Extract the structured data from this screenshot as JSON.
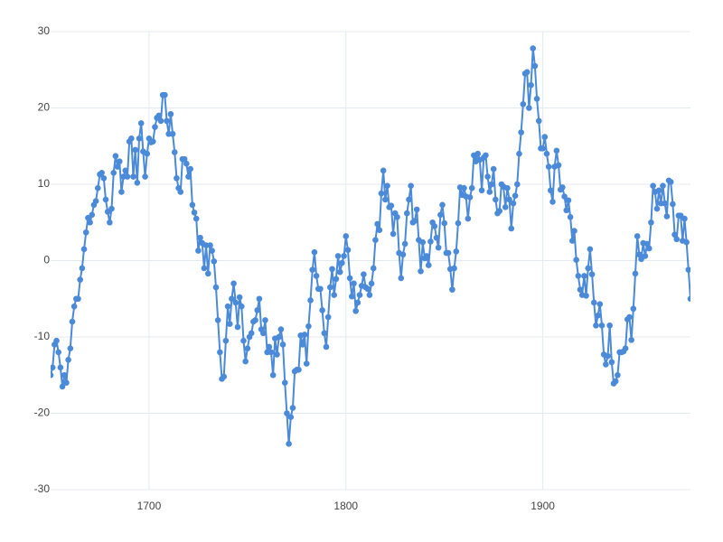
{
  "chart_data": {
    "type": "line",
    "xlim": [
      1650,
      1975
    ],
    "ylim": [
      -30,
      30
    ],
    "xticks": [
      1700,
      1800,
      1900
    ],
    "yticks": [
      -30,
      -20,
      -10,
      0,
      10,
      20,
      30
    ],
    "grid": true,
    "x": [
      1650,
      1651,
      1652,
      1653,
      1654,
      1655,
      1656,
      1657,
      1658,
      1659,
      1660,
      1661,
      1662,
      1663,
      1664,
      1665,
      1666,
      1667,
      1668,
      1669,
      1670,
      1671,
      1672,
      1673,
      1674,
      1675,
      1676,
      1677,
      1678,
      1679,
      1680,
      1681,
      1682,
      1683,
      1684,
      1685,
      1686,
      1687,
      1688,
      1689,
      1690,
      1691,
      1692,
      1693,
      1694,
      1695,
      1696,
      1697,
      1698,
      1699,
      1700,
      1701,
      1702,
      1703,
      1704,
      1705,
      1706,
      1707,
      1708,
      1709,
      1710,
      1711,
      1712,
      1713,
      1714,
      1715,
      1716,
      1717,
      1718,
      1719,
      1720,
      1721,
      1722,
      1723,
      1724,
      1725,
      1726,
      1727,
      1728,
      1729,
      1730,
      1731,
      1732,
      1733,
      1734,
      1735,
      1736,
      1737,
      1738,
      1739,
      1740,
      1741,
      1742,
      1743,
      1744,
      1745,
      1746,
      1747,
      1748,
      1749,
      1750,
      1751,
      1752,
      1753,
      1754,
      1755,
      1756,
      1757,
      1758,
      1759,
      1760,
      1761,
      1762,
      1763,
      1764,
      1765,
      1766,
      1767,
      1768,
      1769,
      1770,
      1771,
      1772,
      1773,
      1774,
      1775,
      1776,
      1777,
      1778,
      1779,
      1780,
      1781,
      1782,
      1783,
      1784,
      1785,
      1786,
      1787,
      1788,
      1789,
      1790,
      1791,
      1792,
      1793,
      1794,
      1795,
      1796,
      1797,
      1798,
      1799,
      1800,
      1801,
      1802,
      1803,
      1804,
      1805,
      1806,
      1807,
      1808,
      1809,
      1810,
      1811,
      1812,
      1813,
      1814,
      1815,
      1816,
      1817,
      1818,
      1819,
      1820,
      1821,
      1822,
      1823,
      1824,
      1825,
      1826,
      1827,
      1828,
      1829,
      1830,
      1831,
      1832,
      1833,
      1834,
      1835,
      1836,
      1837,
      1838,
      1839,
      1840,
      1841,
      1842,
      1843,
      1844,
      1845,
      1846,
      1847,
      1848,
      1849,
      1850,
      1851,
      1852,
      1853,
      1854,
      1855,
      1856,
      1857,
      1858,
      1859,
      1860,
      1861,
      1862,
      1863,
      1864,
      1865,
      1866,
      1867,
      1868,
      1869,
      1870,
      1871,
      1872,
      1873,
      1874,
      1875,
      1876,
      1877,
      1878,
      1879,
      1880,
      1881,
      1882,
      1883,
      1884,
      1885,
      1886,
      1887,
      1888,
      1889,
      1890,
      1891,
      1892,
      1893,
      1894,
      1895,
      1896,
      1897,
      1898,
      1899,
      1900,
      1901,
      1902,
      1903,
      1904,
      1905,
      1906,
      1907,
      1908,
      1909,
      1910,
      1911,
      1912,
      1913,
      1914,
      1915,
      1916,
      1917,
      1918,
      1919,
      1920,
      1921,
      1922,
      1923,
      1924,
      1925,
      1926,
      1927,
      1928,
      1929,
      1930,
      1931,
      1932,
      1933,
      1934,
      1935,
      1936,
      1937,
      1938,
      1939,
      1940,
      1941,
      1942,
      1943,
      1944,
      1945,
      1946,
      1947,
      1948,
      1949,
      1950,
      1951,
      1952,
      1953,
      1954,
      1955,
      1956,
      1957,
      1958,
      1959,
      1960,
      1961,
      1962,
      1963,
      1964,
      1965,
      1966,
      1967,
      1968,
      1969,
      1970,
      1971,
      1972,
      1973,
      1974,
      1975
    ],
    "series": [
      {
        "color": "#4a8ad8",
        "values": [
          -15,
          -14,
          -11,
          -10.5,
          -12,
          -14,
          -16.5,
          -15,
          -16,
          -13,
          -11.5,
          -8,
          -6,
          -5,
          -5,
          -2.5,
          -1,
          1.5,
          3.7,
          5.6,
          5,
          6,
          7.3,
          7.8,
          9.5,
          11.3,
          11.5,
          10.8,
          8,
          6.4,
          5,
          6.8,
          11.5,
          13.7,
          12.3,
          13,
          9,
          11,
          11.8,
          11,
          15.6,
          16,
          11,
          14.5,
          10.2,
          16,
          18,
          14.3,
          11,
          14,
          16,
          15.5,
          15.6,
          17.5,
          18.7,
          19,
          18.3,
          21.7,
          21.7,
          18.3,
          16.6,
          19.2,
          16.6,
          14.2,
          10.8,
          9.5,
          9,
          13.3,
          13.3,
          12.7,
          11,
          12,
          7.3,
          6.3,
          5.5,
          1.3,
          3,
          2.3,
          -1,
          2,
          -1.7,
          2,
          1.3,
          -0.1,
          -3.5,
          -7.8,
          -12,
          -15.5,
          -15.2,
          -10.5,
          -6,
          -8.3,
          -5,
          -3,
          -5.5,
          -8.7,
          -4.8,
          -6,
          -10.5,
          -13.2,
          -11.5,
          -10,
          -9.5,
          -8,
          -7.8,
          -6.5,
          -5,
          -9,
          -9.5,
          -7.8,
          -12,
          -11.3,
          -12,
          -15,
          -10.2,
          -12.3,
          -10,
          -9,
          -11,
          -16,
          -20,
          -24,
          -20.5,
          -19.3,
          -14.5,
          -14.3,
          -14.3,
          -9.8,
          -11,
          -9.7,
          -13.5,
          -8.6,
          -5.2,
          -1.2,
          1.1,
          -2,
          -3.7,
          -3.7,
          -6.5,
          -9.5,
          -11.3,
          -7.4,
          -3.5,
          -1.1,
          -4.5,
          -2.4,
          0.6,
          -1.5,
          -0.3,
          0.6,
          3.2,
          1.4,
          -2.3,
          -4.7,
          -3,
          -6.6,
          -5.5,
          -4.5,
          -3.3,
          -1.8,
          -3.5,
          -3.7,
          -4.5,
          -3,
          -1,
          2.7,
          4.8,
          4,
          8.8,
          11.8,
          8,
          9.8,
          7,
          7.2,
          3.5,
          6.2,
          5.7,
          1,
          -2.3,
          0.8,
          2.2,
          6.2,
          8,
          9.8,
          5,
          5.2,
          6.7,
          2.7,
          -1.4,
          2.4,
          0.3,
          0.6,
          -0.6,
          2.5,
          5,
          4.5,
          3,
          1.7,
          6,
          7.3,
          4.9,
          1,
          1,
          -1.1,
          -3.8,
          -1,
          1.2,
          4.9,
          9.6,
          8.6,
          9.5,
          8.4,
          5.5,
          8.3,
          9.5,
          13.8,
          13,
          14,
          13.2,
          9.2,
          13.5,
          13.8,
          11,
          9,
          10,
          12,
          8,
          6.2,
          6.5,
          10,
          9.7,
          7,
          9.5,
          8,
          4.2,
          7.5,
          8.5,
          10,
          14,
          16.8,
          20.5,
          24.5,
          24.7,
          20,
          23,
          27.8,
          25.5,
          21.2,
          18.3,
          14.7,
          14.7,
          16.2,
          14,
          12.3,
          9.2,
          7.7,
          12.3,
          14.4,
          12.5,
          9.3,
          9.6,
          8.4,
          6.6,
          7.9,
          5.7,
          2.6,
          3.9,
          0.1,
          -2,
          -3.8,
          -4.5,
          -2,
          -4.6,
          -1,
          1.5,
          -1.8,
          -5.5,
          -8.5,
          -7.2,
          -5.7,
          -8.5,
          -12.3,
          -13.6,
          -12.5,
          -8.5,
          -13.3,
          -16.1,
          -15.8,
          -15,
          -12,
          -12,
          -11.9,
          -11.5,
          -7.7,
          -7.4,
          -10.4,
          -6.3,
          -1.7,
          3.2,
          0.8,
          0.2,
          2.3,
          0.6,
          2.2,
          1.6,
          5,
          9.8,
          9,
          6.8,
          9.2,
          7.5,
          9.8,
          7.5,
          5.8,
          10.5,
          10.3,
          7.4,
          3.4,
          2.8,
          5.9,
          5.9,
          2.6,
          5.5,
          2.4,
          -1.2,
          -5
        ]
      }
    ]
  }
}
